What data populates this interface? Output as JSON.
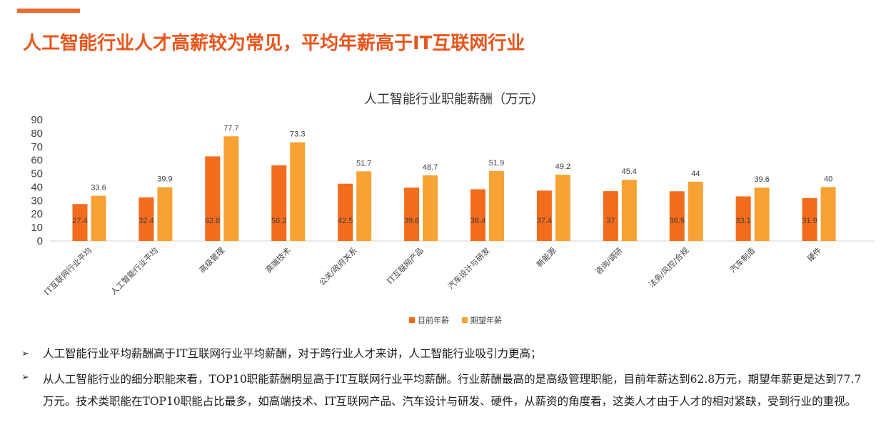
{
  "headline": "人工智能行业人才高薪较为常见，平均年薪高于IT互联网行业",
  "colors": {
    "accent": "#ee6a2c",
    "current": "#f36c1c",
    "expected": "#f7a234"
  },
  "chart_data": {
    "type": "bar",
    "title": "人工智能行业职能薪酬（万元）",
    "xlabel": "",
    "ylabel": "",
    "ylim": [
      0,
      90
    ],
    "yticks": [
      0,
      10,
      20,
      30,
      40,
      50,
      60,
      70,
      80,
      90
    ],
    "categories": [
      "IT互联网行业平均",
      "人工智能行业平均",
      "高级管理",
      "高端技术",
      "公关/政府关系",
      "IT互联网产品",
      "汽车设计与研发",
      "新能源",
      "咨询/调研",
      "法务/风控/合规",
      "汽车制造",
      "硬件"
    ],
    "series": [
      {
        "name": "目前年薪",
        "color": "#f36c1c",
        "values": [
          27.4,
          32.4,
          62.8,
          56.2,
          42.5,
          39.6,
          38.4,
          37.4,
          37,
          36.9,
          33.1,
          31.9
        ]
      },
      {
        "name": "期望年薪",
        "color": "#f7a234",
        "values": [
          33.6,
          39.9,
          77.7,
          73.3,
          51.7,
          48.7,
          51.9,
          49.2,
          45.4,
          44,
          39.6,
          40
        ]
      }
    ],
    "grid": false,
    "legend": "bottom"
  },
  "bullets": [
    {
      "mark": "➢",
      "text": "人工智能行业平均薪酬高于IT互联网行业平均薪酬，对于跨行业人才来讲，人工智能行业吸引力更高；"
    },
    {
      "mark": "➢",
      "text": "从人工智能行业的细分职能来看，TOP10职能薪酬明显高于IT互联网行业平均薪酬。行业薪酬最高的是高级管理职能，目前年薪达到62.8万元，期望年薪更是达到77.7万元。技术类职能在TOP10职能占比最多，如高端技术、IT互联网产品、汽车设计与研发、硬件，从薪资的角度看，这类人才由于人才的相对紧缺，受到行业的重视。"
    }
  ]
}
